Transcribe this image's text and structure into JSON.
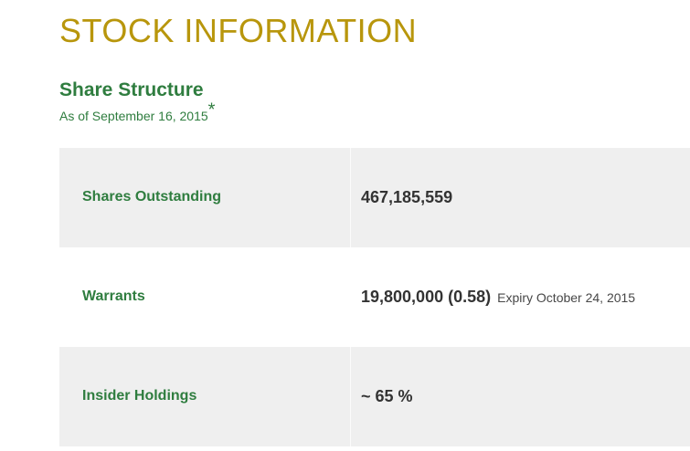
{
  "page": {
    "title": "STOCK INFORMATION"
  },
  "section": {
    "heading": "Share Structure",
    "as_of": "As of September 16, 2015",
    "footnote_marker": "*"
  },
  "table": {
    "rows": [
      {
        "label": "Shares Outstanding",
        "value": "467,185,559",
        "note": ""
      },
      {
        "label": "Warrants",
        "value": "19,800,000 (0.58)",
        "note": "Expiry October 24, 2015"
      },
      {
        "label": "Insider Holdings",
        "value": "~ 65 %",
        "note": ""
      }
    ]
  },
  "colors": {
    "accent_gold": "#B8960C",
    "accent_green": "#2F7D3F",
    "value_text": "#333333",
    "note_text": "#474747",
    "row_alt_bg": "#EFEFEF",
    "page_bg": "#FFFFFF"
  }
}
